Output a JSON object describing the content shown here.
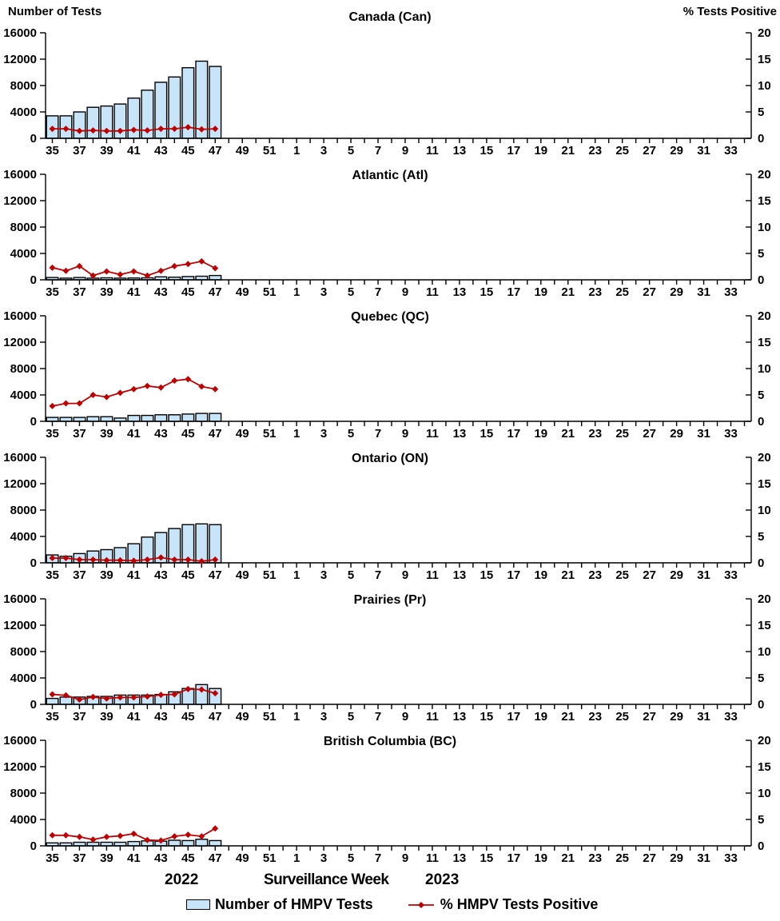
{
  "axis_titles": {
    "left": "Number of Tests",
    "right": "% Tests Positive"
  },
  "x_axis": {
    "title": "Surveillance Week",
    "year_left": "2022",
    "year_right": "2023",
    "tick_labels": [
      "35",
      "37",
      "39",
      "41",
      "43",
      "45",
      "47",
      "49",
      "51",
      "1",
      "3",
      "5",
      "7",
      "9",
      "11",
      "13",
      "15",
      "17",
      "19",
      "21",
      "23",
      "25",
      "27",
      "29",
      "31",
      "33"
    ]
  },
  "y_axis": {
    "left_ticks": [
      "16000",
      "12000",
      "8000",
      "4000",
      "0"
    ],
    "right_ticks": [
      "20",
      "15",
      "10",
      "5",
      "0"
    ],
    "left_range": [
      0,
      16000
    ],
    "right_range": [
      0,
      20
    ]
  },
  "legend": {
    "bars_label": "Number of HMPV Tests",
    "line_label": "% HMPV Tests Positive"
  },
  "colors": {
    "bar_fill": "#C8E4F8",
    "bar_border": "#000000",
    "line": "#C00000",
    "text": "#000000"
  },
  "chart_data": [
    {
      "title": "Canada (Can)",
      "type": "bar+line",
      "weeks": [
        35,
        36,
        37,
        38,
        39,
        40,
        41,
        42,
        43,
        44,
        45,
        46,
        47
      ],
      "series": [
        {
          "name": "Number of HMPV Tests",
          "axis": "left",
          "values": [
            3400,
            3400,
            4000,
            4700,
            4900,
            5200,
            6100,
            7300,
            8500,
            9300,
            10700,
            11700,
            10900
          ]
        },
        {
          "name": "% HMPV Tests Positive",
          "axis": "right",
          "values": [
            1.8,
            1.8,
            1.4,
            1.5,
            1.4,
            1.4,
            1.6,
            1.5,
            1.8,
            1.8,
            2.1,
            1.7,
            1.8
          ]
        }
      ]
    },
    {
      "title": "Atlantic (Atl)",
      "type": "bar+line",
      "weeks": [
        35,
        36,
        37,
        38,
        39,
        40,
        41,
        42,
        43,
        44,
        45,
        46,
        47
      ],
      "series": [
        {
          "name": "Number of HMPV Tests",
          "axis": "left",
          "values": [
            350,
            250,
            350,
            250,
            300,
            250,
            280,
            300,
            450,
            400,
            500,
            550,
            650
          ]
        },
        {
          "name": "% HMPV Tests Positive",
          "axis": "right",
          "values": [
            2.3,
            1.7,
            2.6,
            0.8,
            1.6,
            1.0,
            1.6,
            0.8,
            1.7,
            2.6,
            3.0,
            3.5,
            2.2
          ]
        }
      ]
    },
    {
      "title": "Quebec (QC)",
      "type": "bar+line",
      "weeks": [
        35,
        36,
        37,
        38,
        39,
        40,
        41,
        42,
        43,
        44,
        45,
        46,
        47
      ],
      "series": [
        {
          "name": "Number of HMPV Tests",
          "axis": "left",
          "values": [
            600,
            600,
            600,
            700,
            700,
            500,
            900,
            900,
            1000,
            1000,
            1100,
            1200,
            1200
          ]
        },
        {
          "name": "% HMPV Tests Positive",
          "axis": "right",
          "values": [
            2.9,
            3.4,
            3.4,
            5.0,
            4.6,
            5.4,
            6.1,
            6.7,
            6.4,
            7.7,
            8.0,
            6.6,
            6.1
          ]
        }
      ]
    },
    {
      "title": "Ontario (ON)",
      "type": "bar+line",
      "weeks": [
        35,
        36,
        37,
        38,
        39,
        40,
        41,
        42,
        43,
        44,
        45,
        46,
        47
      ],
      "series": [
        {
          "name": "Number of HMPV Tests",
          "axis": "left",
          "values": [
            1200,
            1000,
            1400,
            1800,
            2000,
            2300,
            2900,
            3900,
            4600,
            5200,
            5800,
            5900,
            5800
          ]
        },
        {
          "name": "% HMPV Tests Positive",
          "axis": "right",
          "values": [
            0.9,
            0.9,
            0.6,
            0.6,
            0.5,
            0.5,
            0.4,
            0.6,
            1.0,
            0.6,
            0.6,
            0.3,
            0.6
          ]
        }
      ]
    },
    {
      "title": "Prairies (Pr)",
      "type": "bar+line",
      "weeks": [
        35,
        36,
        37,
        38,
        39,
        40,
        41,
        42,
        43,
        44,
        45,
        46,
        47
      ],
      "series": [
        {
          "name": "Number of HMPV Tests",
          "axis": "left",
          "values": [
            900,
            1100,
            1100,
            1200,
            1200,
            1400,
            1400,
            1400,
            1500,
            1900,
            2400,
            3000,
            2400
          ]
        },
        {
          "name": "% HMPV Tests Positive",
          "axis": "right",
          "values": [
            1.9,
            1.7,
            0.9,
            1.4,
            1.1,
            1.3,
            1.3,
            1.5,
            1.8,
            1.9,
            2.9,
            2.8,
            2.1
          ]
        }
      ]
    },
    {
      "title": "British Columbia (BC)",
      "type": "bar+line",
      "weeks": [
        35,
        36,
        37,
        38,
        39,
        40,
        41,
        42,
        43,
        44,
        45,
        46,
        47
      ],
      "series": [
        {
          "name": "Number of HMPV Tests",
          "axis": "left",
          "values": [
            450,
            450,
            550,
            550,
            550,
            550,
            650,
            750,
            700,
            850,
            800,
            1000,
            800
          ]
        },
        {
          "name": "% HMPV Tests Positive",
          "axis": "right",
          "values": [
            2.0,
            2.0,
            1.7,
            1.2,
            1.7,
            1.9,
            2.3,
            1.1,
            1.0,
            1.8,
            2.1,
            1.8,
            3.3
          ]
        }
      ]
    }
  ]
}
